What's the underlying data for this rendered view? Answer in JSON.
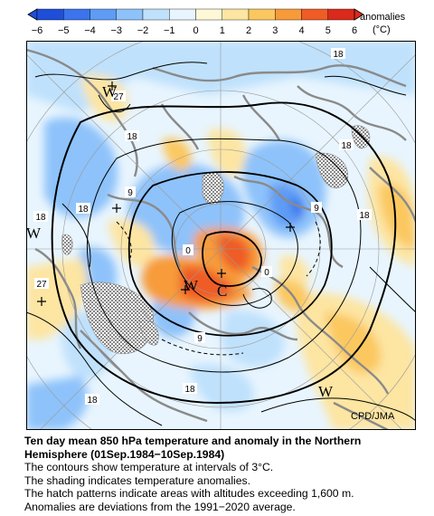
{
  "colorbar": {
    "label_line1": "anomalies",
    "label_line2": "(°C)",
    "ticks": [
      "−6",
      "−5",
      "−4",
      "−3",
      "−2",
      "−1",
      "0",
      "1",
      "2",
      "3",
      "4",
      "5",
      "6"
    ],
    "colors": [
      "#1f4fd8",
      "#3b74ec",
      "#5e9cf5",
      "#8ec2fa",
      "#bfe1fc",
      "#e8f5fe",
      "#fff8d8",
      "#fde5a2",
      "#fbc860",
      "#f79b3a",
      "#ef5c26",
      "#d92a1c"
    ]
  },
  "map": {
    "contour_labels": [
      "18",
      "27",
      "18",
      "9",
      "18",
      "27",
      "0",
      "0",
      "9",
      "18",
      "18",
      "18",
      "9",
      "18",
      "18"
    ],
    "anomaly_labels": [
      "W",
      "W",
      "W",
      "W",
      "C"
    ],
    "credit": "CPD/JMA"
  },
  "caption": {
    "title_line1": "Ten day mean 850 hPa temperature and anomaly in the Northern",
    "title_line2": "Hemisphere (01Sep.1984−10Sep.1984)",
    "line1": "The contours show temperature at intervals of 3°C.",
    "line2": "The shading indicates temperature anomalies.",
    "line3": "The hatch patterns indicate areas with altitudes exceeding 1,600 m.",
    "line4": "Anomalies are deviations from the 1991−2020 average."
  }
}
